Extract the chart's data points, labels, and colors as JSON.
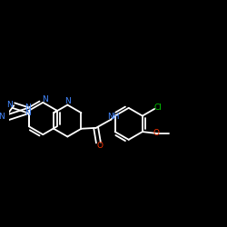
{
  "background_color": "#000000",
  "bond_color": "#ffffff",
  "atom_colors": {
    "N": "#4488ff",
    "O": "#ff3300",
    "Cl": "#00cc00",
    "H": "#ffffff",
    "C": "#ffffff"
  },
  "figsize": [
    2.5,
    2.5
  ],
  "dpi": 100,
  "lw": 1.3,
  "fs": 6.5
}
